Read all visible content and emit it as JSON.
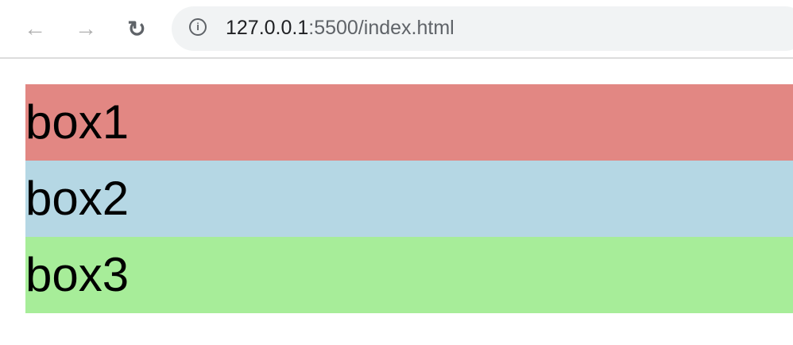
{
  "browser": {
    "url_host": "127.0.0.1",
    "url_rest": ":5500/index.html",
    "icons": {
      "back": "arrow-left-icon",
      "forward": "arrow-right-icon",
      "reload": "reload-icon",
      "info": "info-icon"
    }
  },
  "boxes": [
    {
      "label": "box1",
      "color": "#e28783"
    },
    {
      "label": "box2",
      "color": "#b5d7e4"
    },
    {
      "label": "box3",
      "color": "#a7ed99"
    }
  ]
}
